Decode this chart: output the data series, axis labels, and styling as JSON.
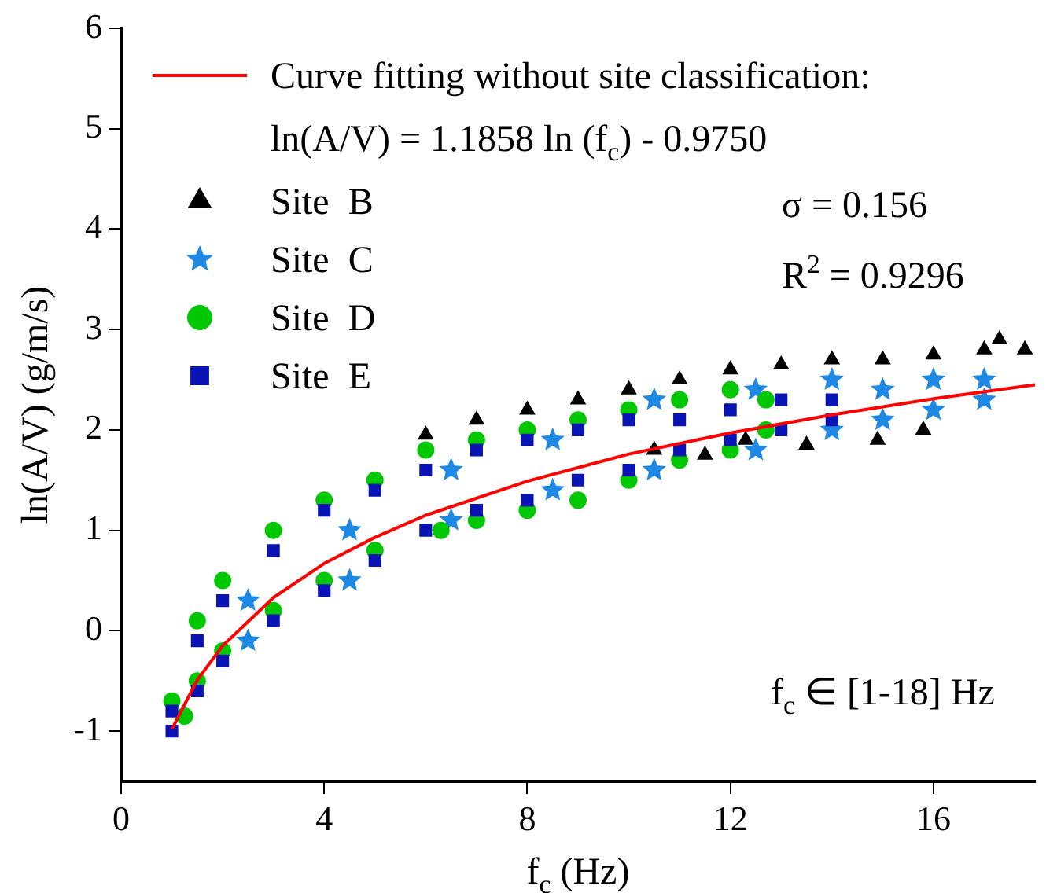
{
  "chart_data": {
    "type": "scatter",
    "xlabel": "f$_{c}$ (Hz)",
    "ylabel": "ln(A/V) (g/m/s)",
    "xlim": [
      0,
      18
    ],
    "xticks": [
      0,
      4,
      8,
      12,
      16
    ],
    "ylim": [
      -1.5,
      6
    ],
    "yticks": [
      -1,
      0,
      1,
      2,
      3,
      4,
      5,
      6
    ],
    "grid": false,
    "legend": "top left",
    "annotations": [
      "ln(A/V) = 1.1858 ln (f$_{c}$) - 0.9750",
      "σ = 0.156",
      "R$^{2}$ = 0.9296",
      "f$_{c}$ ∈ [1-18] Hz"
    ],
    "series": [
      {
        "name": "Curve fitting without site classification:",
        "type": "line",
        "color": "#ff0000",
        "marker": "none",
        "x": [
          1,
          1.5,
          2,
          3,
          4,
          5,
          6,
          8,
          10,
          12,
          14,
          16,
          18
        ],
        "values": [
          -0.98,
          -0.49,
          -0.15,
          0.33,
          0.67,
          0.93,
          1.15,
          1.49,
          1.76,
          1.97,
          2.15,
          2.31,
          2.45
        ]
      },
      {
        "name": "Site  B",
        "type": "scatter",
        "color": "#000000",
        "marker": "triangle",
        "x": [
          6,
          7,
          8,
          9,
          10,
          11,
          12,
          13,
          14,
          15,
          16,
          17,
          17.3,
          17.8,
          12.3,
          13.5,
          14.9,
          15.8,
          10.5,
          11.5
        ],
        "values": [
          1.95,
          2.1,
          2.2,
          2.3,
          2.4,
          2.5,
          2.6,
          2.65,
          2.7,
          2.7,
          2.75,
          2.8,
          2.9,
          2.8,
          1.9,
          1.85,
          1.9,
          2.0,
          1.8,
          1.75
        ]
      },
      {
        "name": "Site  C",
        "type": "scatter",
        "color": "#1e88e5",
        "marker": "star",
        "x": [
          2.5,
          2.5,
          4.5,
          4.5,
          6.5,
          6.5,
          8.5,
          8.5,
          10.5,
          10.5,
          12.5,
          12.5,
          14,
          14,
          15,
          15,
          16,
          16,
          17,
          17
        ],
        "values": [
          -0.1,
          0.3,
          0.5,
          1.0,
          1.1,
          1.6,
          1.4,
          1.9,
          1.6,
          2.3,
          1.8,
          2.4,
          2.0,
          2.5,
          2.1,
          2.4,
          2.2,
          2.5,
          2.3,
          2.5
        ]
      },
      {
        "name": "Site  D",
        "type": "scatter",
        "color": "#00c800",
        "marker": "circle",
        "x": [
          1.25,
          1,
          1.5,
          1.5,
          2,
          2,
          3,
          3,
          4,
          4,
          5,
          5,
          6.3,
          6,
          7,
          7,
          8,
          8,
          9,
          9,
          10,
          10,
          11,
          11,
          12,
          12,
          12.7,
          12.7
        ],
        "values": [
          -0.85,
          -0.7,
          -0.5,
          0.1,
          -0.2,
          0.5,
          0.2,
          1.0,
          0.5,
          1.3,
          0.8,
          1.5,
          1.0,
          1.8,
          1.1,
          1.9,
          1.2,
          2.0,
          1.3,
          2.1,
          1.5,
          2.2,
          1.7,
          2.3,
          1.8,
          2.4,
          2.0,
          2.3
        ]
      },
      {
        "name": "Site  E",
        "type": "scatter",
        "color": "#0a14b4",
        "marker": "square",
        "x": [
          1,
          1,
          1.5,
          1.5,
          2,
          2,
          3,
          3,
          4,
          4,
          5,
          5,
          6,
          6,
          7,
          7,
          8,
          8,
          9,
          9,
          10,
          10,
          11,
          11,
          12,
          12,
          13,
          13,
          14,
          14
        ],
        "values": [
          -1.0,
          -0.8,
          -0.6,
          -0.1,
          -0.3,
          0.3,
          0.1,
          0.8,
          0.4,
          1.2,
          0.7,
          1.4,
          1.0,
          1.6,
          1.2,
          1.8,
          1.3,
          1.9,
          1.5,
          2.0,
          1.6,
          2.1,
          1.8,
          2.1,
          1.9,
          2.2,
          2.0,
          2.3,
          2.1,
          2.3
        ]
      }
    ]
  }
}
